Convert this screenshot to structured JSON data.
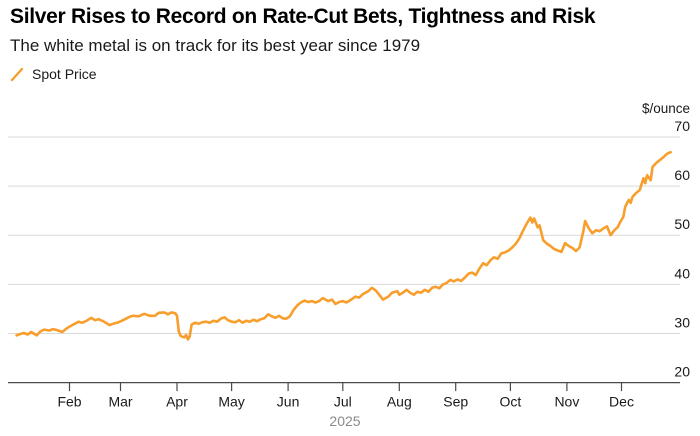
{
  "header": {
    "title": "Silver Rises to Record on Rate-Cut Bets, Tightness and Risk",
    "subtitle": "The white metal is on track for its best year since 1979"
  },
  "legend": {
    "items": [
      {
        "label": "Spot Price",
        "swatch_icon": "line-slash-icon",
        "color": "#F89E2C"
      }
    ]
  },
  "colors": {
    "accent_orange": "#F89E2C",
    "grid": "#D9D9D9",
    "axis": "#4A4A4A",
    "text_primary": "#1A1A1A",
    "text_muted": "#8A8A8A",
    "background": "#FFFFFF"
  },
  "chart_data": {
    "type": "line",
    "title": "Silver spot price, 2025",
    "unit_label": "$/ounce",
    "legend_position": "top-left",
    "grid": "horizontal-only",
    "x_axis": {
      "year_label": "2025",
      "month_tick_labels": [
        "Feb",
        "Mar",
        "Apr",
        "May",
        "Jun",
        "Jul",
        "Aug",
        "Sep",
        "Oct",
        "Nov",
        "Dec"
      ],
      "month_start_days": [
        31,
        59,
        90,
        120,
        151,
        181,
        212,
        243,
        273,
        304,
        334
      ],
      "domain_days": [
        0,
        365
      ]
    },
    "y_axis": {
      "ylim": [
        20,
        70
      ],
      "ticks": [
        20,
        30,
        40,
        50,
        60,
        70
      ],
      "gridlines": [
        30,
        40,
        50,
        60,
        70
      ],
      "axis_value": 20
    },
    "series": [
      {
        "name": "Spot Price",
        "color": "#F89E2C",
        "points_day_value": [
          [
            2,
            29.6
          ],
          [
            4,
            29.9
          ],
          [
            6,
            30.1
          ],
          [
            8,
            29.8
          ],
          [
            10,
            30.3
          ],
          [
            13,
            29.6
          ],
          [
            15,
            30.4
          ],
          [
            17,
            30.8
          ],
          [
            20,
            30.6
          ],
          [
            22,
            30.9
          ],
          [
            24,
            30.7
          ],
          [
            27,
            30.3
          ],
          [
            29,
            30.9
          ],
          [
            31,
            31.4
          ],
          [
            34,
            32.0
          ],
          [
            36,
            32.4
          ],
          [
            38,
            32.2
          ],
          [
            40,
            32.5
          ],
          [
            43,
            33.2
          ],
          [
            45,
            32.7
          ],
          [
            47,
            32.9
          ],
          [
            50,
            32.4
          ],
          [
            53,
            31.7
          ],
          [
            55,
            32.0
          ],
          [
            58,
            32.3
          ],
          [
            61,
            32.8
          ],
          [
            64,
            33.4
          ],
          [
            66,
            33.6
          ],
          [
            69,
            33.5
          ],
          [
            72,
            34.0
          ],
          [
            75,
            33.6
          ],
          [
            78,
            33.6
          ],
          [
            80,
            34.2
          ],
          [
            83,
            34.3
          ],
          [
            85,
            33.9
          ],
          [
            87,
            34.3
          ],
          [
            89,
            34.1
          ],
          [
            90,
            33.6
          ],
          [
            91,
            30.4
          ],
          [
            92,
            29.5
          ],
          [
            94,
            29.2
          ],
          [
            95,
            29.7
          ],
          [
            96,
            28.8
          ],
          [
            97,
            29.4
          ],
          [
            98,
            31.8
          ],
          [
            100,
            32.2
          ],
          [
            102,
            32.0
          ],
          [
            104,
            32.3
          ],
          [
            106,
            32.4
          ],
          [
            108,
            32.2
          ],
          [
            110,
            32.6
          ],
          [
            112,
            32.4
          ],
          [
            114,
            33.0
          ],
          [
            116,
            33.3
          ],
          [
            118,
            32.7
          ],
          [
            120,
            32.4
          ],
          [
            122,
            32.3
          ],
          [
            124,
            32.7
          ],
          [
            126,
            32.2
          ],
          [
            128,
            32.6
          ],
          [
            130,
            32.4
          ],
          [
            132,
            32.8
          ],
          [
            134,
            32.5
          ],
          [
            136,
            32.9
          ],
          [
            138,
            33.1
          ],
          [
            140,
            33.9
          ],
          [
            142,
            33.5
          ],
          [
            144,
            33.2
          ],
          [
            146,
            33.6
          ],
          [
            148,
            33.1
          ],
          [
            150,
            33.0
          ],
          [
            152,
            33.5
          ],
          [
            154,
            34.8
          ],
          [
            156,
            35.7
          ],
          [
            158,
            36.3
          ],
          [
            160,
            36.7
          ],
          [
            162,
            36.4
          ],
          [
            164,
            36.6
          ],
          [
            166,
            36.3
          ],
          [
            168,
            36.6
          ],
          [
            170,
            37.2
          ],
          [
            173,
            36.6
          ],
          [
            175,
            36.9
          ],
          [
            177,
            36.0
          ],
          [
            179,
            36.4
          ],
          [
            181,
            36.6
          ],
          [
            183,
            36.3
          ],
          [
            186,
            37.0
          ],
          [
            188,
            37.5
          ],
          [
            190,
            37.3
          ],
          [
            192,
            38.0
          ],
          [
            195,
            38.6
          ],
          [
            197,
            39.3
          ],
          [
            199,
            38.8
          ],
          [
            201,
            37.9
          ],
          [
            203,
            36.9
          ],
          [
            206,
            37.5
          ],
          [
            208,
            38.3
          ],
          [
            211,
            38.6
          ],
          [
            212,
            37.9
          ],
          [
            214,
            38.3
          ],
          [
            216,
            38.9
          ],
          [
            218,
            38.3
          ],
          [
            220,
            37.9
          ],
          [
            222,
            38.5
          ],
          [
            224,
            38.3
          ],
          [
            226,
            38.9
          ],
          [
            228,
            38.5
          ],
          [
            230,
            39.3
          ],
          [
            232,
            39.5
          ],
          [
            234,
            39.2
          ],
          [
            236,
            40.0
          ],
          [
            238,
            40.3
          ],
          [
            240,
            40.9
          ],
          [
            242,
            40.6
          ],
          [
            244,
            41.0
          ],
          [
            246,
            40.7
          ],
          [
            248,
            41.4
          ],
          [
            250,
            42.2
          ],
          [
            252,
            42.4
          ],
          [
            254,
            41.9
          ],
          [
            256,
            43.2
          ],
          [
            258,
            44.3
          ],
          [
            260,
            43.9
          ],
          [
            262,
            44.9
          ],
          [
            264,
            45.5
          ],
          [
            266,
            45.2
          ],
          [
            268,
            46.3
          ],
          [
            270,
            46.5
          ],
          [
            272,
            46.9
          ],
          [
            274,
            47.5
          ],
          [
            276,
            48.3
          ],
          [
            278,
            49.4
          ],
          [
            280,
            51.0
          ],
          [
            282,
            52.4
          ],
          [
            284,
            53.6
          ],
          [
            285,
            52.6
          ],
          [
            286,
            53.4
          ],
          [
            288,
            51.6
          ],
          [
            289,
            52.0
          ],
          [
            291,
            49.0
          ],
          [
            293,
            48.3
          ],
          [
            295,
            47.8
          ],
          [
            297,
            47.2
          ],
          [
            299,
            46.9
          ],
          [
            301,
            46.6
          ],
          [
            303,
            48.4
          ],
          [
            305,
            47.8
          ],
          [
            307,
            47.4
          ],
          [
            309,
            46.8
          ],
          [
            311,
            47.5
          ],
          [
            313,
            50.8
          ],
          [
            314,
            52.9
          ],
          [
            316,
            51.4
          ],
          [
            318,
            50.4
          ],
          [
            320,
            51.0
          ],
          [
            322,
            50.8
          ],
          [
            324,
            51.4
          ],
          [
            326,
            51.8
          ],
          [
            328,
            50.0
          ],
          [
            330,
            51.0
          ],
          [
            332,
            51.7
          ],
          [
            333,
            52.5
          ],
          [
            335,
            53.8
          ],
          [
            336,
            55.8
          ],
          [
            338,
            57.2
          ],
          [
            339,
            56.6
          ],
          [
            340,
            57.8
          ],
          [
            342,
            58.6
          ],
          [
            344,
            59.2
          ],
          [
            346,
            61.6
          ],
          [
            347,
            60.6
          ],
          [
            348,
            62.2
          ],
          [
            350,
            61.2
          ],
          [
            351,
            63.9
          ],
          [
            353,
            64.7
          ],
          [
            355,
            65.3
          ],
          [
            357,
            65.9
          ],
          [
            359,
            66.6
          ],
          [
            361,
            66.9
          ]
        ]
      }
    ]
  }
}
